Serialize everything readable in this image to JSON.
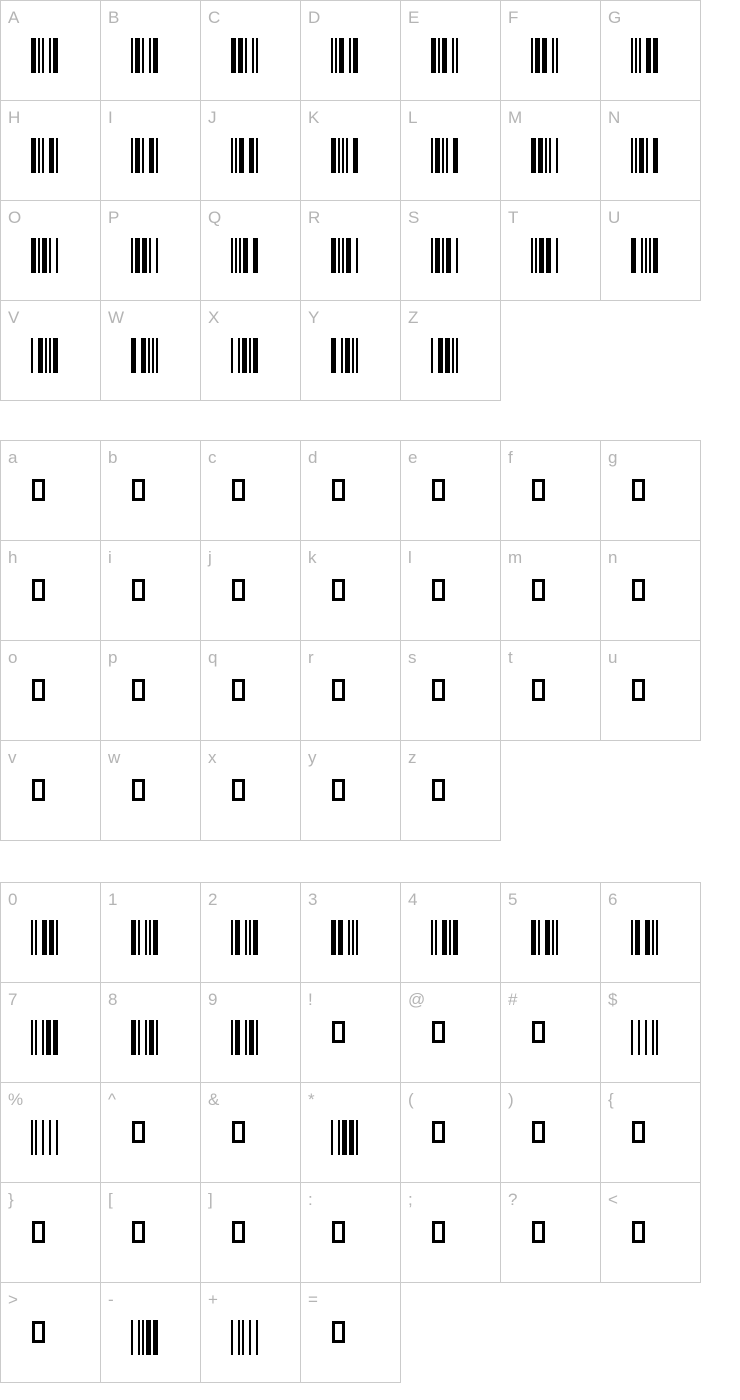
{
  "colors": {
    "background": "#ffffff",
    "cell_border": "#cbcbcb",
    "label": "#b4b4b4",
    "glyph": "#000000"
  },
  "sections": [
    {
      "name": "uppercase-letters",
      "columns": 7,
      "cells": [
        "A",
        "B",
        "C",
        "D",
        "E",
        "F",
        "G",
        "H",
        "I",
        "J",
        "K",
        "L",
        "M",
        "N",
        "O",
        "P",
        "Q",
        "R",
        "S",
        "T",
        "U",
        "V",
        "W",
        "X",
        "Y",
        "Z"
      ]
    },
    {
      "name": "lowercase-letters",
      "columns": 7,
      "cells": [
        "a",
        "b",
        "c",
        "d",
        "e",
        "f",
        "g",
        "h",
        "i",
        "j",
        "k",
        "l",
        "m",
        "n",
        "o",
        "p",
        "q",
        "r",
        "s",
        "t",
        "u",
        "v",
        "w",
        "x",
        "y",
        "z"
      ]
    },
    {
      "name": "digits-and-symbols",
      "columns": 7,
      "cells": [
        "0",
        "1",
        "2",
        "3",
        "4",
        "5",
        "6",
        "7",
        "8",
        "9",
        "!",
        "@",
        "#",
        "$",
        "%",
        "^",
        "&",
        "*",
        "(",
        ")",
        "{",
        "}",
        "[",
        "]",
        ":",
        ";",
        "?",
        "<",
        ">",
        "-",
        "+",
        "="
      ]
    }
  ],
  "barcode_encoding": {
    "element_order": "bar,space,bar,space,bar,space,bar,space,bar",
    "1": "wide element",
    "0": "narrow element"
  },
  "barcode_patterns": {
    "A": "100001001",
    "B": "001001001",
    "C": "101001000",
    "D": "000011001",
    "E": "100011000",
    "F": "001011000",
    "G": "000001101",
    "H": "100001100",
    "I": "001001100",
    "J": "000011100",
    "K": "100000011",
    "L": "001000011",
    "M": "101000010",
    "N": "000010011",
    "O": "100010010",
    "P": "001010010",
    "Q": "000000111",
    "R": "100000110",
    "S": "001000110",
    "T": "000010110",
    "U": "110000001",
    "V": "011000001",
    "W": "111000000",
    "X": "010010001",
    "Y": "110010000",
    "Z": "011010000",
    "0": "000110100",
    "1": "100100001",
    "2": "001100001",
    "3": "101100000",
    "4": "000110001",
    "5": "100110000",
    "6": "001110000",
    "7": "000100101",
    "8": "100100100",
    "9": "001100100",
    "$": "010101000",
    "%": "000101010",
    "*": "010010100",
    "-": "010000101",
    "+": "010001010"
  }
}
